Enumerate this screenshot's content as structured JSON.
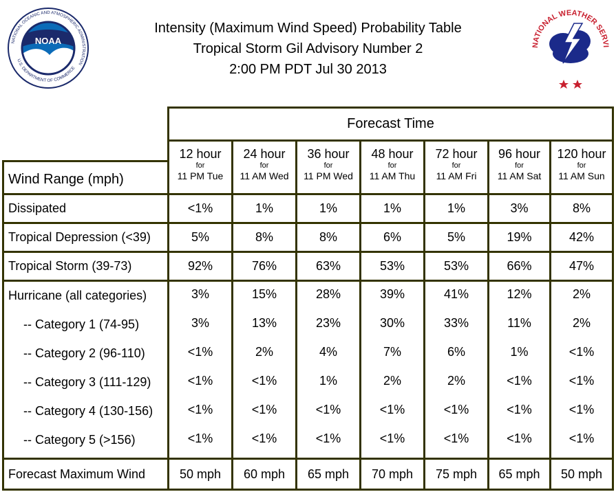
{
  "title_lines": [
    "Intensity (Maximum Wind Speed) Probability Table",
    "Tropical Storm Gil Advisory Number 2",
    "2:00 PM PDT Jul 30 2013"
  ],
  "logos": {
    "noaa": {
      "text": "NOAA",
      "ring_text": "NATIONAL OCEANIC AND ATMOSPHERIC ADMINISTRATION",
      "ring_text_bottom": "U.S. DEPARTMENT OF COMMERCE"
    },
    "nws": {
      "ring_text": "NATIONAL WEATHER SERVICE"
    }
  },
  "table": {
    "forecast_time_label": "Forecast Time",
    "wind_range_label": "Wind Range (mph)",
    "columns": [
      {
        "hours": "12 hour",
        "for": "for",
        "when": "11 PM Tue"
      },
      {
        "hours": "24 hour",
        "for": "for",
        "when": "11 AM Wed"
      },
      {
        "hours": "36 hour",
        "for": "for",
        "when": "11 PM Wed"
      },
      {
        "hours": "48 hour",
        "for": "for",
        "when": "11 AM Thu"
      },
      {
        "hours": "72 hour",
        "for": "for",
        "when": "11 AM Fri"
      },
      {
        "hours": "96 hour",
        "for": "for",
        "when": "11 AM Sat"
      },
      {
        "hours": "120 hour",
        "for": "for",
        "when": "11 AM Sun"
      }
    ],
    "rows": {
      "dissipated": {
        "label": "Dissipated",
        "values": [
          "<1%",
          "1%",
          "1%",
          "1%",
          "1%",
          "3%",
          "8%"
        ]
      },
      "depression": {
        "label": "Tropical Depression (<39)",
        "values": [
          "5%",
          "8%",
          "8%",
          "6%",
          "5%",
          "19%",
          "42%"
        ]
      },
      "storm": {
        "label": "Tropical Storm (39-73)",
        "values": [
          "92%",
          "76%",
          "63%",
          "53%",
          "53%",
          "66%",
          "47%"
        ]
      },
      "hurricane": {
        "label": "Hurricane (all categories)",
        "values": [
          "3%",
          "15%",
          "28%",
          "39%",
          "41%",
          "12%",
          "2%"
        ]
      },
      "categories": [
        {
          "label": "-- Category 1 (74-95)",
          "values": [
            "3%",
            "13%",
            "23%",
            "30%",
            "33%",
            "11%",
            "2%"
          ]
        },
        {
          "label": "-- Category 2 (96-110)",
          "values": [
            "<1%",
            "2%",
            "4%",
            "7%",
            "6%",
            "1%",
            "<1%"
          ]
        },
        {
          "label": "-- Category 3 (111-129)",
          "values": [
            "<1%",
            "<1%",
            "1%",
            "2%",
            "2%",
            "<1%",
            "<1%"
          ]
        },
        {
          "label": "-- Category 4 (130-156)",
          "values": [
            "<1%",
            "<1%",
            "<1%",
            "<1%",
            "<1%",
            "<1%",
            "<1%"
          ]
        },
        {
          "label": "-- Category 5 (>156)",
          "values": [
            "<1%",
            "<1%",
            "<1%",
            "<1%",
            "<1%",
            "<1%",
            "<1%"
          ]
        }
      ],
      "max_wind": {
        "label": "Forecast Maximum Wind",
        "values": [
          "50 mph",
          "60 mph",
          "65 mph",
          "70 mph",
          "75 mph",
          "65 mph",
          "50 mph"
        ]
      }
    }
  }
}
